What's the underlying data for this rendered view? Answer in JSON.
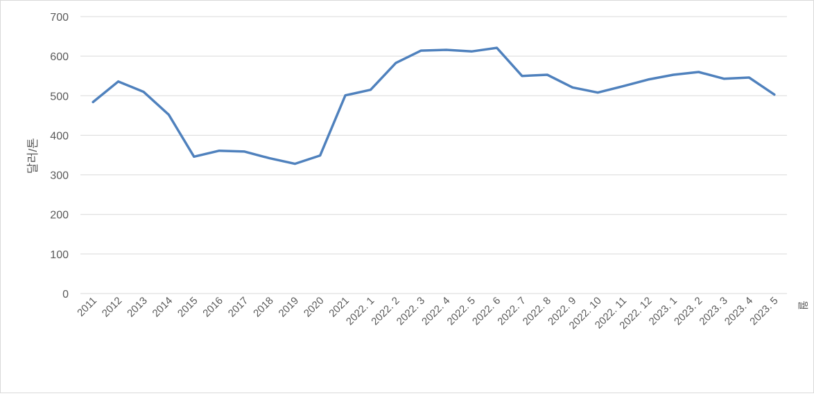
{
  "chart_data": {
    "type": "line",
    "title": "",
    "ylabel": "달러/톤",
    "xlabel": "월",
    "ylim": [
      0,
      700
    ],
    "ytick_step": 100,
    "grid": true,
    "legend": "none",
    "categories": [
      "2011",
      "2012",
      "2013",
      "2014",
      "2015",
      "2016",
      "2017",
      "2018",
      "2019",
      "2020",
      "2021",
      "2022. 1",
      "2022. 2",
      "2022. 3",
      "2022. 4",
      "2022. 5",
      "2022. 6",
      "2022. 7",
      "2022. 8",
      "2022. 9",
      "2022. 10",
      "2022. 11",
      "2022. 12",
      "2023. 1",
      "2023. 2",
      "2023. 3",
      "2023. 4",
      "2023. 5"
    ],
    "series": [
      {
        "color": "#4f81bd",
        "values": [
          484,
          536,
          510,
          452,
          346,
          361,
          359,
          342,
          328,
          349,
          501,
          515,
          583,
          614,
          616,
          612,
          621,
          550,
          553,
          521,
          508,
          524,
          541,
          553,
          560,
          543,
          546,
          503
        ]
      }
    ]
  }
}
